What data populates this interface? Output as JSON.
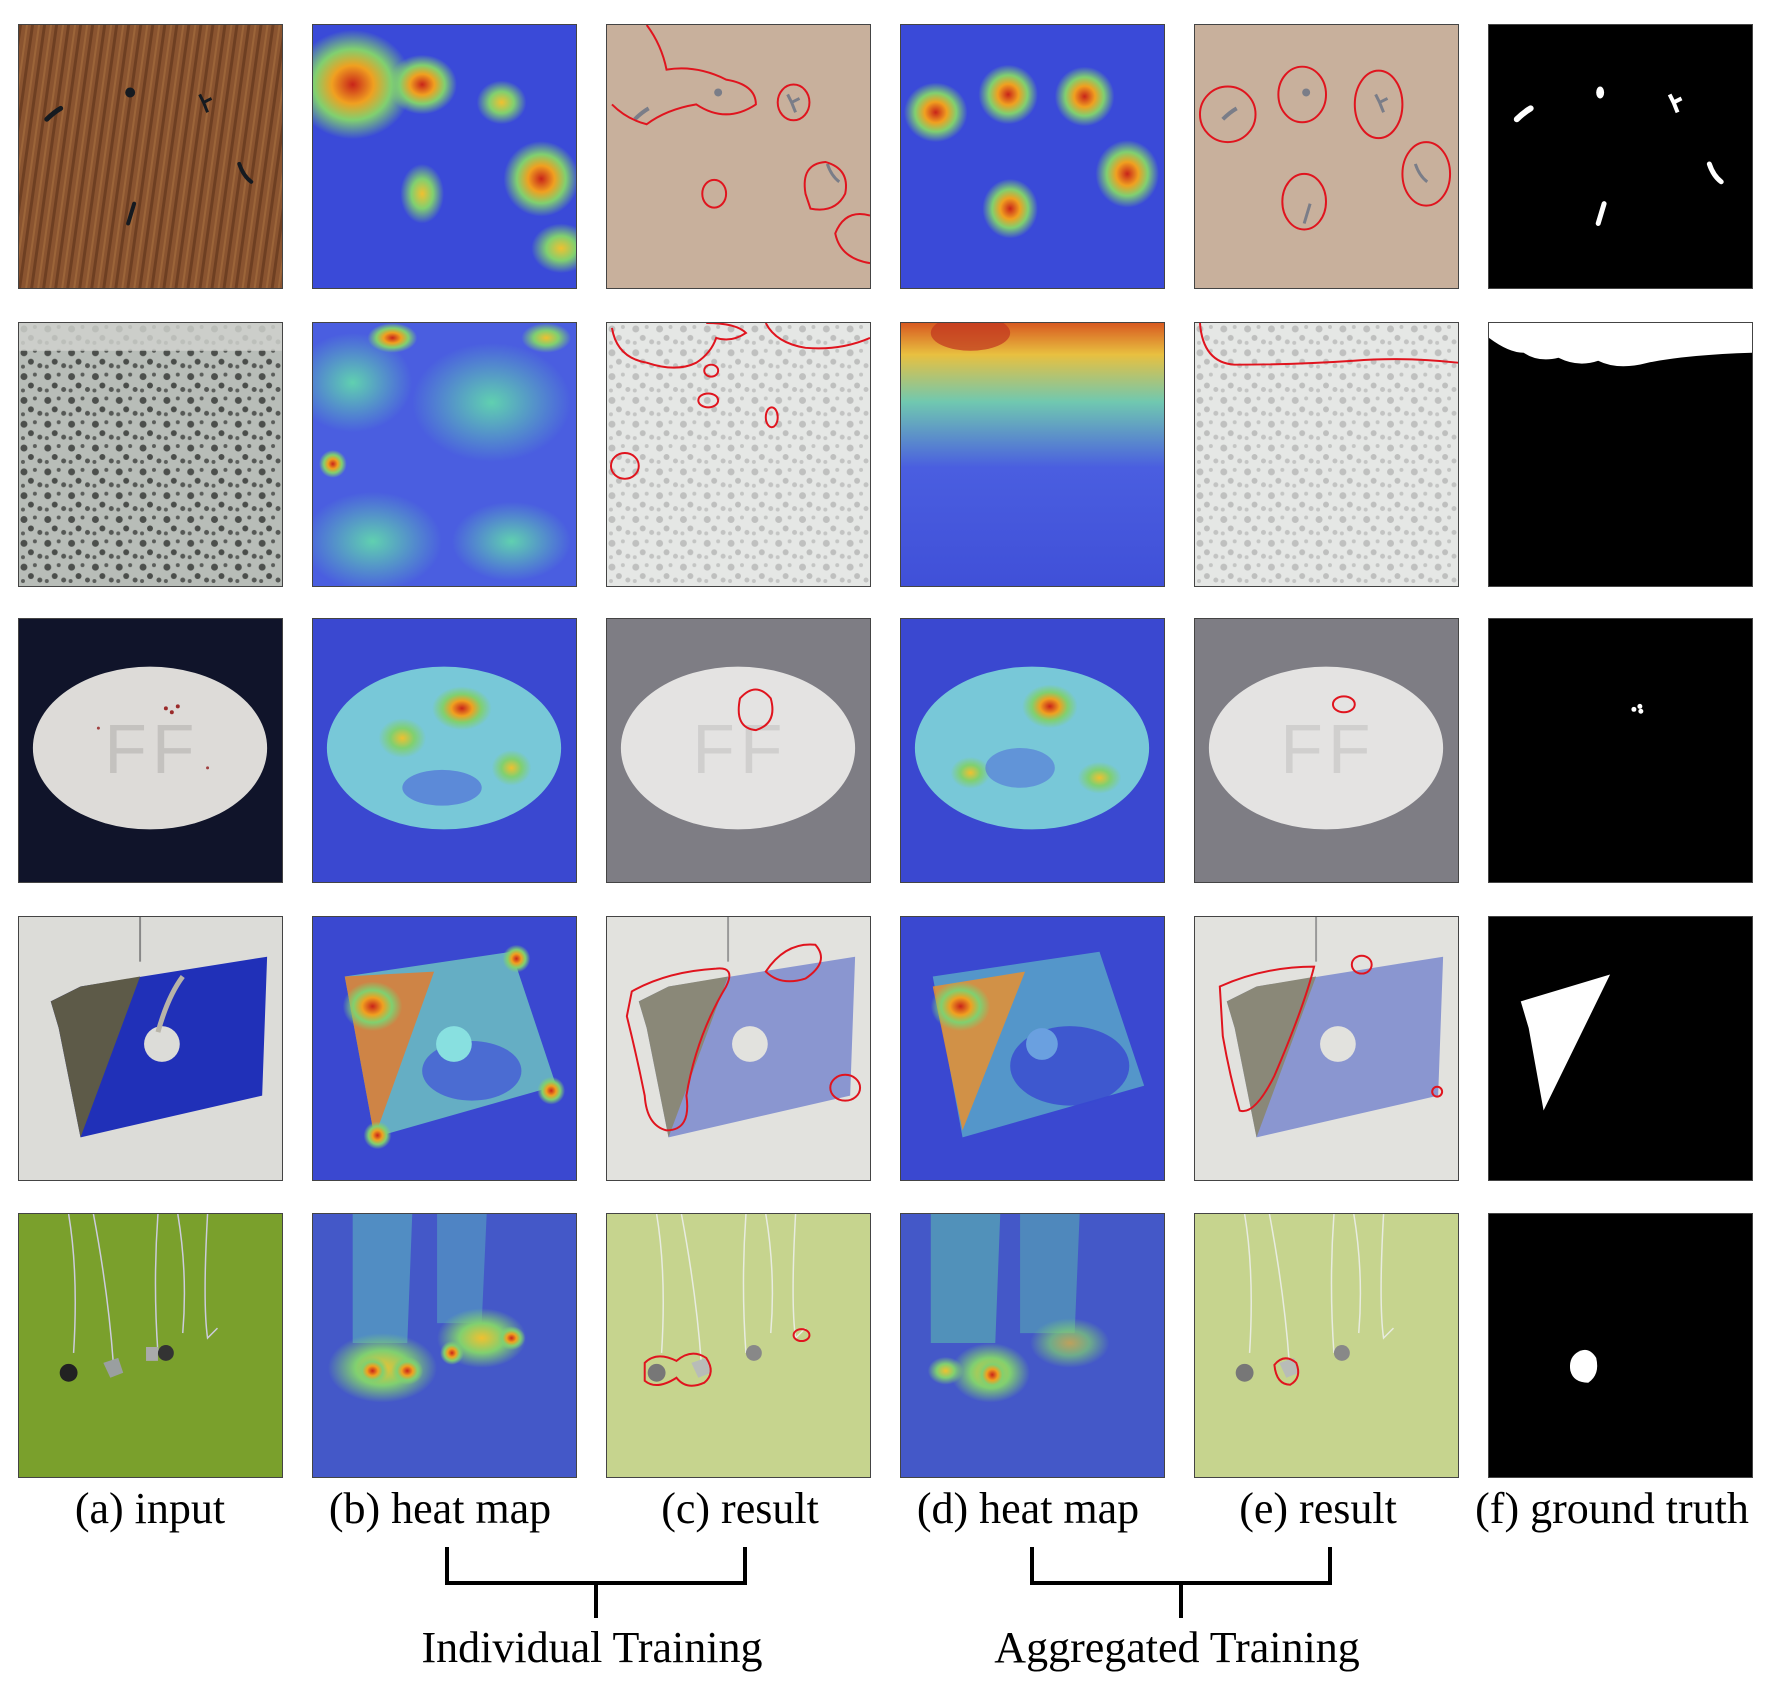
{
  "columns": [
    {
      "caption": "(a) input"
    },
    {
      "caption": "(b) heat map"
    },
    {
      "caption": "(c) result"
    },
    {
      "caption": "(d) heat map"
    },
    {
      "caption": "(e) result"
    },
    {
      "caption": "(f) ground truth"
    }
  ],
  "groups": [
    {
      "label": "Individual Training"
    },
    {
      "label": "Aggregated Training"
    }
  ],
  "colors": {
    "contour": "#e0141e",
    "heat_cold": "#3340d8",
    "heat_hot": "#d8301a",
    "mask_bg": "#000000",
    "mask_fg": "#ffffff"
  }
}
